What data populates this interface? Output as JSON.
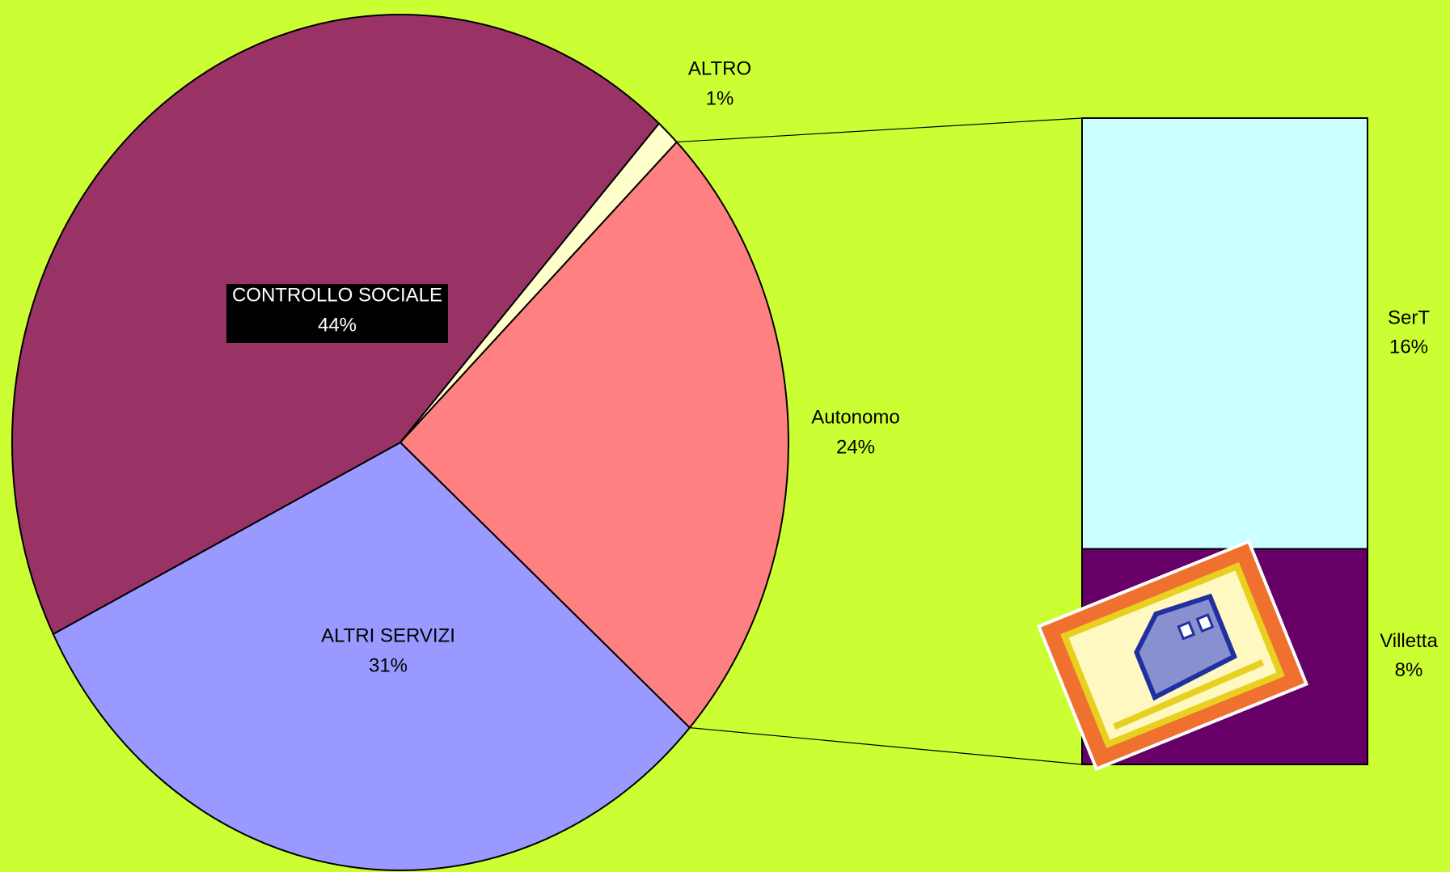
{
  "chart_data": {
    "type": "pie",
    "categories": [
      "Autonomo",
      "ALTRI SERVIZI",
      "CONTROLLO SOCIALE",
      "ALTRO"
    ],
    "values": [
      24,
      31,
      44,
      1
    ],
    "value_labels": [
      "24%",
      "31%",
      "44%",
      "1%"
    ],
    "colors": [
      "#ff8080",
      "#9999ff",
      "#993366",
      "#ffffcc"
    ],
    "breakdown": {
      "categories": [
        "SerT",
        "Villetta"
      ],
      "values": [
        16,
        8
      ],
      "value_labels": [
        "16%",
        "8%"
      ],
      "colors": [
        "#ccffff",
        "#660066"
      ]
    }
  }
}
